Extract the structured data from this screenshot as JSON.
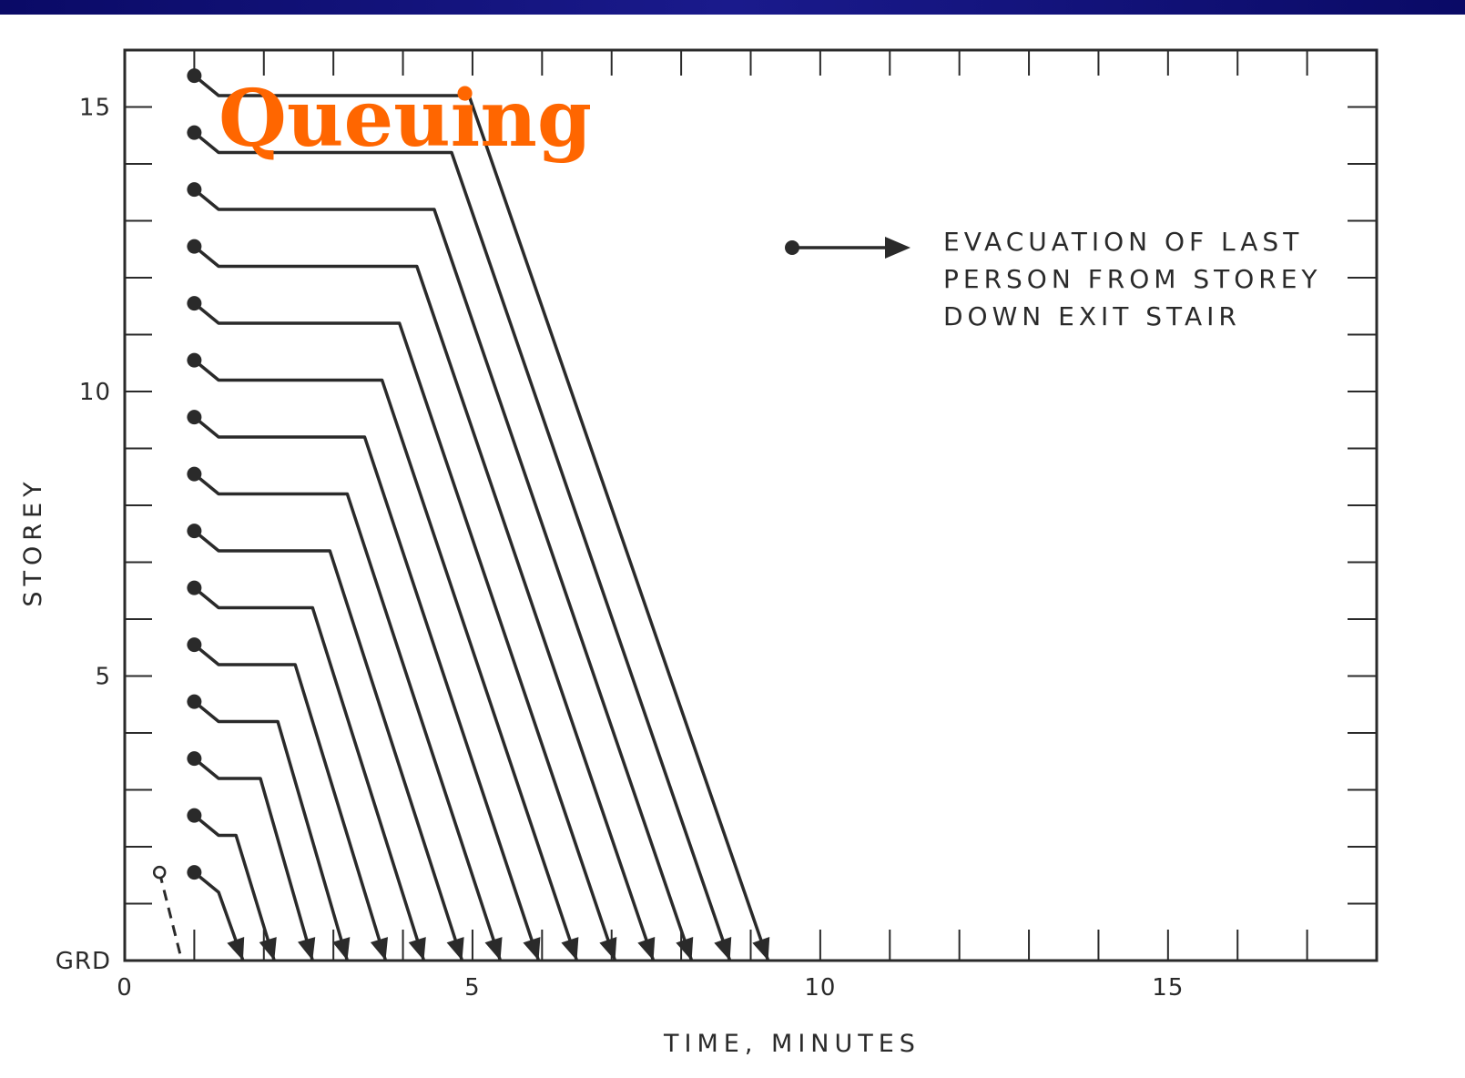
{
  "overlay_title": "Queuing",
  "chart_data": {
    "type": "line",
    "title": "",
    "xlabel": "TIME, MINUTES",
    "ylabel": "STOREY",
    "xlim": [
      0,
      18
    ],
    "ylim": [
      0,
      16
    ],
    "x_ticks": [
      0,
      5,
      10,
      15
    ],
    "x_tick_labels": [
      "0",
      "5",
      "10",
      "15"
    ],
    "y_ticks": [
      0,
      5,
      10,
      15
    ],
    "y_tick_labels": [
      "GRD",
      "5",
      "10",
      "15"
    ],
    "grid": false,
    "legend": {
      "position": "top-right",
      "text": [
        "EVACUATION OF LAST",
        "PERSON FROM STOREY",
        "DOWN EXIT STAIR"
      ],
      "symbol": "dot-arrow"
    },
    "series": [
      {
        "storey": 1,
        "style": "dashed",
        "marker": "open",
        "points": [
          [
            0.5,
            1.55
          ],
          [
            0.82,
            0
          ]
        ]
      },
      {
        "storey": 1,
        "points": [
          [
            1.0,
            1.55
          ],
          [
            1.35,
            1.2
          ],
          [
            1.7,
            0
          ]
        ]
      },
      {
        "storey": 2,
        "points": [
          [
            1.0,
            2.55
          ],
          [
            1.35,
            2.2
          ],
          [
            1.6,
            2.2
          ],
          [
            2.15,
            0
          ]
        ]
      },
      {
        "storey": 3,
        "points": [
          [
            1.0,
            3.55
          ],
          [
            1.35,
            3.2
          ],
          [
            1.95,
            3.2
          ],
          [
            2.7,
            0
          ]
        ]
      },
      {
        "storey": 4,
        "points": [
          [
            1.0,
            4.55
          ],
          [
            1.35,
            4.2
          ],
          [
            2.2,
            4.2
          ],
          [
            3.2,
            0
          ]
        ]
      },
      {
        "storey": 5,
        "points": [
          [
            1.0,
            5.55
          ],
          [
            1.35,
            5.2
          ],
          [
            2.45,
            5.2
          ],
          [
            3.75,
            0
          ]
        ]
      },
      {
        "storey": 6,
        "points": [
          [
            1.0,
            6.55
          ],
          [
            1.35,
            6.2
          ],
          [
            2.7,
            6.2
          ],
          [
            4.3,
            0
          ]
        ]
      },
      {
        "storey": 7,
        "points": [
          [
            1.0,
            7.55
          ],
          [
            1.35,
            7.2
          ],
          [
            2.95,
            7.2
          ],
          [
            4.85,
            0
          ]
        ]
      },
      {
        "storey": 8,
        "points": [
          [
            1.0,
            8.55
          ],
          [
            1.35,
            8.2
          ],
          [
            3.2,
            8.2
          ],
          [
            5.4,
            0
          ]
        ]
      },
      {
        "storey": 9,
        "points": [
          [
            1.0,
            9.55
          ],
          [
            1.35,
            9.2
          ],
          [
            3.45,
            9.2
          ],
          [
            5.95,
            0
          ]
        ]
      },
      {
        "storey": 10,
        "points": [
          [
            1.0,
            10.55
          ],
          [
            1.35,
            10.2
          ],
          [
            3.7,
            10.2
          ],
          [
            6.5,
            0
          ]
        ]
      },
      {
        "storey": 11,
        "points": [
          [
            1.0,
            11.55
          ],
          [
            1.35,
            11.2
          ],
          [
            3.95,
            11.2
          ],
          [
            7.05,
            0
          ]
        ]
      },
      {
        "storey": 12,
        "points": [
          [
            1.0,
            12.55
          ],
          [
            1.35,
            12.2
          ],
          [
            4.2,
            12.2
          ],
          [
            7.6,
            0
          ]
        ]
      },
      {
        "storey": 13,
        "points": [
          [
            1.0,
            13.55
          ],
          [
            1.35,
            13.2
          ],
          [
            4.45,
            13.2
          ],
          [
            8.15,
            0
          ]
        ]
      },
      {
        "storey": 14,
        "points": [
          [
            1.0,
            14.55
          ],
          [
            1.35,
            14.2
          ],
          [
            4.7,
            14.2
          ],
          [
            8.7,
            0
          ]
        ]
      },
      {
        "storey": 15,
        "points": [
          [
            1.0,
            15.55
          ],
          [
            1.35,
            15.2
          ],
          [
            4.95,
            15.2
          ],
          [
            9.25,
            0
          ]
        ]
      }
    ],
    "colors": {
      "line": "#2a2a2a",
      "overlay": "#ff6600",
      "top_bar": "#1a1a8c"
    }
  }
}
